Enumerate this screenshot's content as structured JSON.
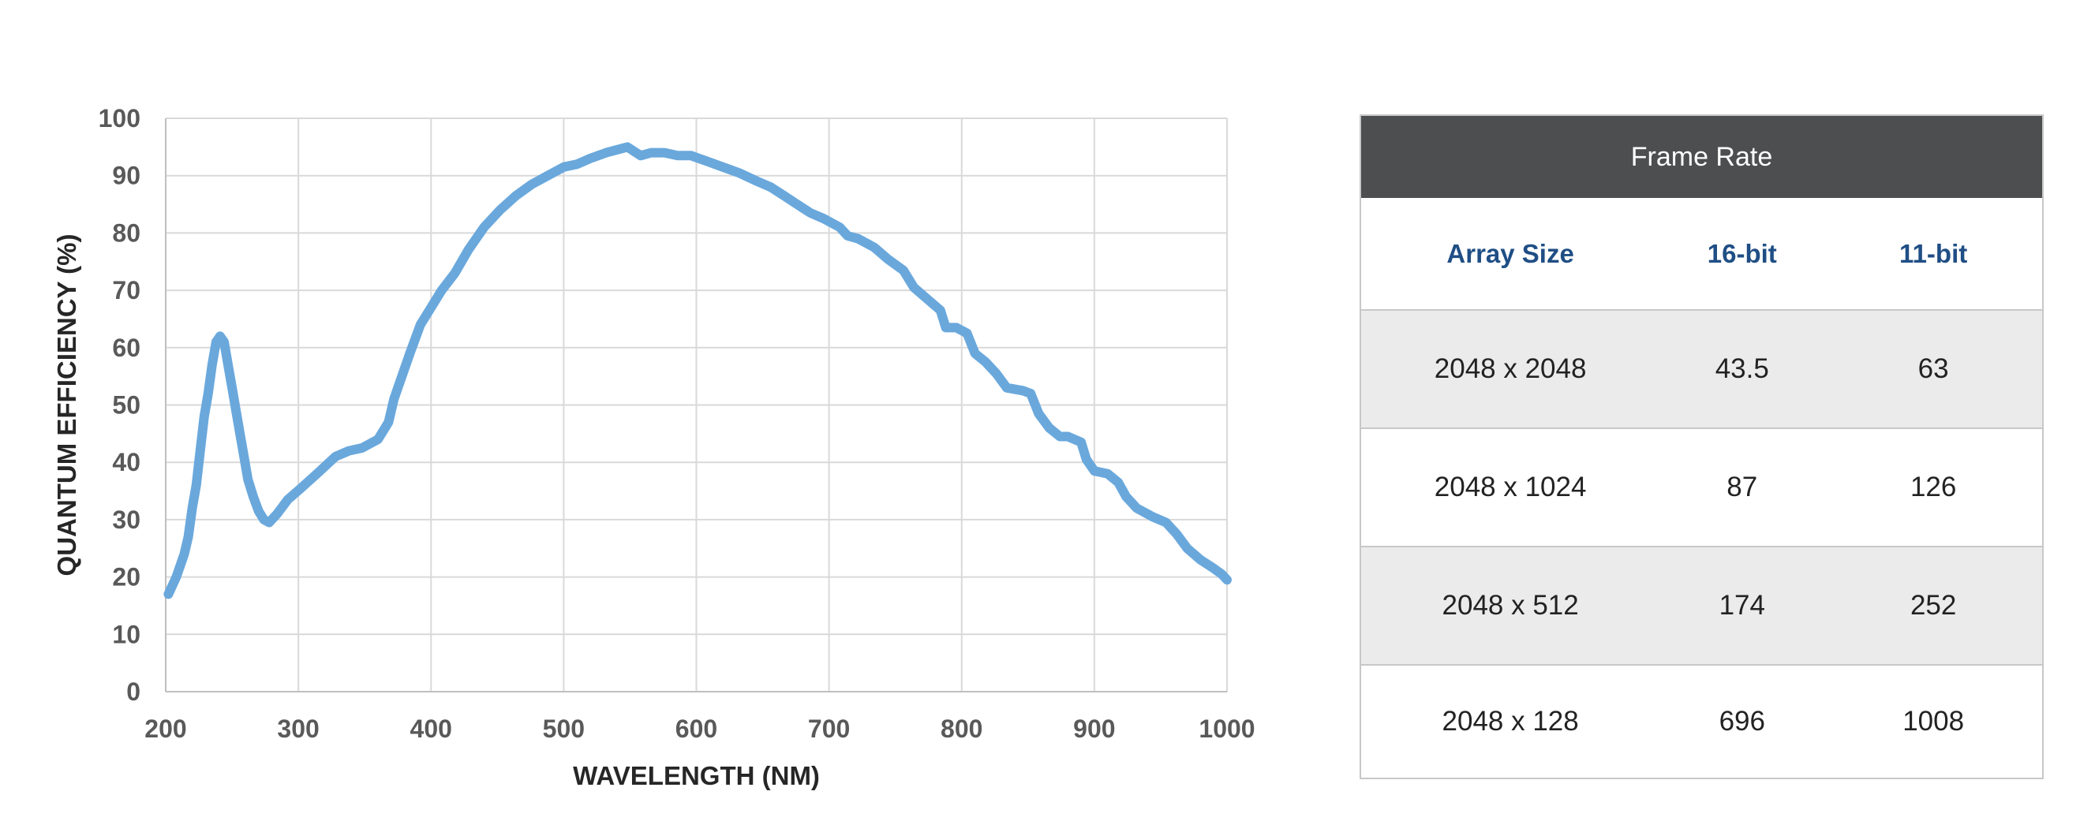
{
  "chart_data": {
    "type": "line",
    "title": "",
    "xlabel": "WAVELENGTH (NM)",
    "ylabel": "QUANTUM EFFICIENCY (%)",
    "xlim": [
      200,
      1000
    ],
    "ylim": [
      0,
      100
    ],
    "x_ticks": [
      "200",
      "300",
      "400",
      "500",
      "600",
      "700",
      "800",
      "900",
      "1000"
    ],
    "y_ticks": [
      "0",
      "10",
      "20",
      "30",
      "40",
      "50",
      "60",
      "70",
      "80",
      "90",
      "100"
    ],
    "grid": true,
    "legend": "none",
    "line_color": "#6aa8dc",
    "series": [
      {
        "x": [
          202,
          208,
          214,
          217,
          220,
          223,
          226,
          229,
          232,
          235,
          238,
          241,
          244,
          247,
          250,
          253,
          256,
          259,
          262,
          266,
          270,
          274,
          278,
          284,
          292,
          302,
          314,
          328,
          338,
          348,
          360,
          368,
          372,
          378,
          384,
          392,
          400,
          408,
          418,
          428,
          440,
          452,
          464,
          476,
          488,
          500,
          510,
          520,
          532,
          548,
          558,
          566,
          576,
          586,
          596,
          608,
          620,
          632,
          646,
          656,
          666,
          676,
          686,
          696,
          708,
          714,
          722,
          734,
          744,
          756,
          764,
          774,
          784,
          788,
          796,
          804,
          810,
          818,
          826,
          834,
          846,
          852,
          858,
          866,
          874,
          880,
          890,
          894,
          900,
          910,
          918,
          924,
          932,
          944,
          954,
          962,
          970,
          980,
          990,
          996,
          1000
        ],
        "y": [
          17,
          20,
          24,
          27,
          32,
          36,
          42,
          48,
          52,
          57,
          61,
          62,
          61,
          57,
          53,
          49,
          45,
          41,
          37,
          34,
          31.5,
          30,
          29.5,
          31,
          33.5,
          35.5,
          38,
          41,
          42,
          42.5,
          44,
          47,
          51,
          55,
          59,
          64,
          67,
          70,
          73,
          77,
          81,
          84,
          86.5,
          88.5,
          90,
          91.5,
          92,
          93,
          94,
          95,
          93.5,
          94,
          94,
          93.5,
          93.5,
          92.5,
          91.5,
          90.5,
          89,
          88,
          86.5,
          85,
          83.5,
          82.5,
          81,
          79.5,
          79,
          77.5,
          75.5,
          73.5,
          70.5,
          68.5,
          66.5,
          63.5,
          63.5,
          62.5,
          59,
          57.5,
          55.5,
          53,
          52.5,
          52,
          48.5,
          46,
          44.5,
          44.5,
          43.5,
          40.5,
          38.5,
          38,
          36.5,
          34,
          32,
          30.5,
          29.5,
          27.5,
          25,
          23,
          21.5,
          20.5,
          19.5
        ]
      }
    ]
  },
  "frame_rate_table": {
    "title": "Frame Rate",
    "columns": [
      "Array Size",
      "16-bit",
      "11-bit"
    ],
    "rows": [
      [
        "2048 x 2048",
        "43.5",
        "63"
      ],
      [
        "2048 x 1024",
        "87",
        "126"
      ],
      [
        "2048 x 512",
        "174",
        "252"
      ],
      [
        "2048 x 128",
        "696",
        "1008"
      ]
    ],
    "row_colors": [
      "#ebebeb",
      "#ffffff",
      "#ebebeb",
      "#ffffff"
    ]
  }
}
